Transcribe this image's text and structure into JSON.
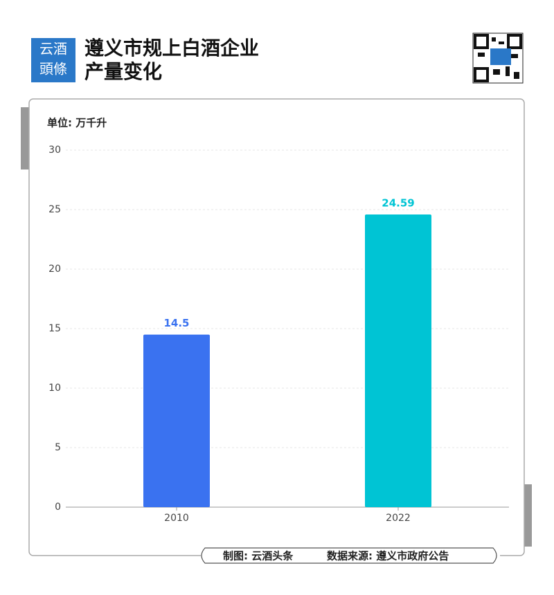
{
  "logo": [
    "云酒",
    "頭條"
  ],
  "credit": "制图: 云酒头条",
  "source": "数据来源: 遵义市政府公告",
  "chart_data": {
    "type": "bar",
    "title": [
      "遵义市规上白酒企业",
      "产量变化"
    ],
    "unit": "单位: 万千升",
    "categories": [
      "2010",
      "2022"
    ],
    "values": [
      14.5,
      24.59
    ],
    "colors": [
      "#3a72f0",
      "#00c4d4"
    ],
    "ylim": [
      0,
      30
    ],
    "yticks": [
      0,
      5,
      10,
      15,
      20,
      25,
      30
    ],
    "grid": true
  }
}
